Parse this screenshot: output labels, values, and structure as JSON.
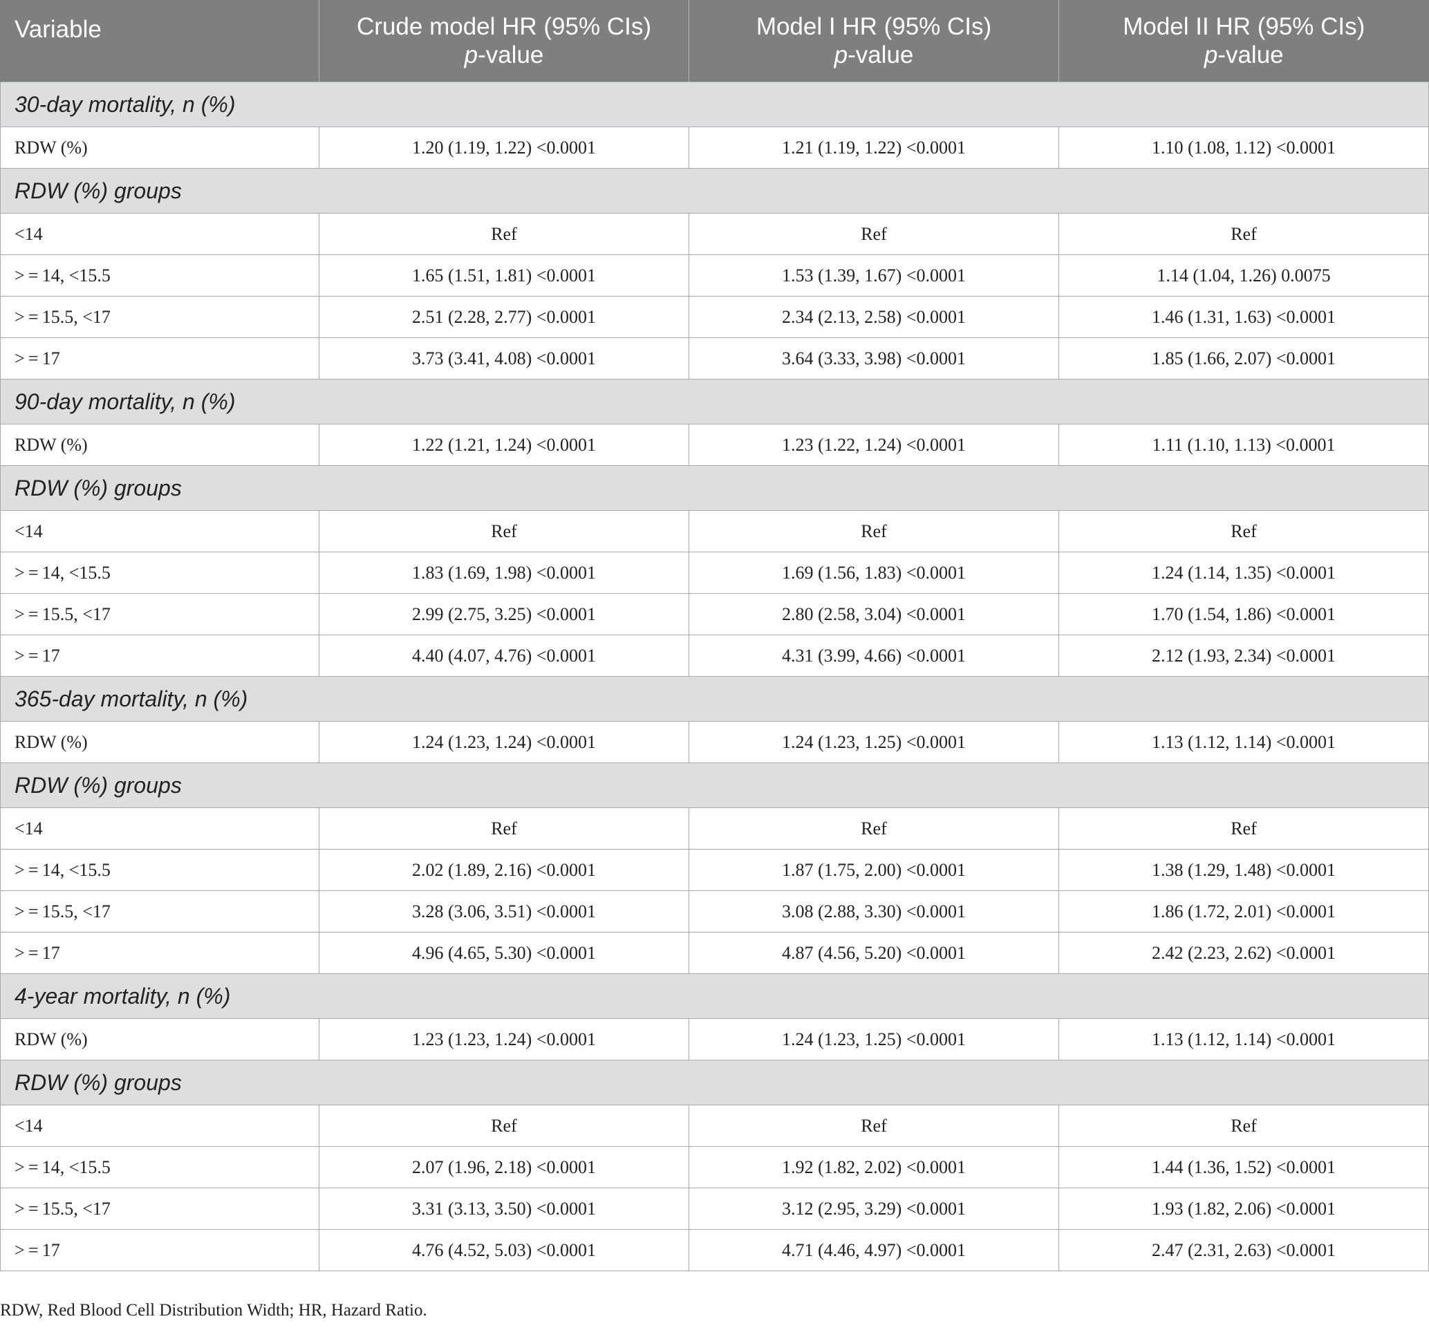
{
  "table": {
    "headers": [
      {
        "line1": "Variable",
        "line2_italic": "",
        "line2_rest": ""
      },
      {
        "line1": "Crude model HR (95% CIs)",
        "line2_italic": "p",
        "line2_rest": "-value"
      },
      {
        "line1": "Model I HR (95% CIs)",
        "line2_italic": "p",
        "line2_rest": "-value"
      },
      {
        "line1": "Model II HR (95% CIs)",
        "line2_italic": "p",
        "line2_rest": "-value"
      }
    ],
    "sections": [
      {
        "title": "30-day mortality, n (%)",
        "rdw_row": [
          "RDW (%)",
          "1.20 (1.19, 1.22) <0.0001",
          "1.21 (1.19, 1.22) <0.0001",
          "1.10 (1.08, 1.12) <0.0001"
        ],
        "groups_title": "RDW (%) groups",
        "group_rows": [
          [
            "<14",
            "Ref",
            "Ref",
            "Ref"
          ],
          [
            "> = 14, <15.5",
            "1.65 (1.51, 1.81) <0.0001",
            "1.53 (1.39, 1.67) <0.0001",
            "1.14 (1.04, 1.26) 0.0075"
          ],
          [
            "> = 15.5, <17",
            "2.51 (2.28, 2.77) <0.0001",
            "2.34 (2.13, 2.58) <0.0001",
            "1.46 (1.31, 1.63) <0.0001"
          ],
          [
            "> = 17",
            "3.73 (3.41, 4.08) <0.0001",
            "3.64 (3.33, 3.98) <0.0001",
            "1.85 (1.66, 2.07) <0.0001"
          ]
        ]
      },
      {
        "title": "90-day mortality, n (%)",
        "rdw_row": [
          "RDW (%)",
          "1.22 (1.21, 1.24) <0.0001",
          "1.23 (1.22, 1.24) <0.0001",
          "1.11 (1.10, 1.13) <0.0001"
        ],
        "groups_title": "RDW (%) groups",
        "group_rows": [
          [
            "<14",
            "Ref",
            "Ref",
            "Ref"
          ],
          [
            "> = 14, <15.5",
            "1.83 (1.69, 1.98) <0.0001",
            "1.69 (1.56, 1.83) <0.0001",
            "1.24 (1.14, 1.35) <0.0001"
          ],
          [
            "> = 15.5, <17",
            "2.99 (2.75, 3.25) <0.0001",
            "2.80 (2.58, 3.04) <0.0001",
            "1.70 (1.54, 1.86) <0.0001"
          ],
          [
            "> = 17",
            "4.40 (4.07, 4.76) <0.0001",
            "4.31 (3.99, 4.66) <0.0001",
            "2.12 (1.93, 2.34) <0.0001"
          ]
        ]
      },
      {
        "title": "365-day mortality, n (%)",
        "rdw_row": [
          "RDW (%)",
          "1.24 (1.23, 1.24) <0.0001",
          "1.24 (1.23, 1.25) <0.0001",
          "1.13 (1.12, 1.14) <0.0001"
        ],
        "groups_title": "RDW (%) groups",
        "group_rows": [
          [
            "<14",
            "Ref",
            "Ref",
            "Ref"
          ],
          [
            "> = 14, <15.5",
            "2.02 (1.89, 2.16) <0.0001",
            "1.87 (1.75, 2.00) <0.0001",
            "1.38 (1.29, 1.48) <0.0001"
          ],
          [
            "> = 15.5, <17",
            "3.28 (3.06, 3.51) <0.0001",
            "3.08 (2.88, 3.30) <0.0001",
            "1.86 (1.72, 2.01) <0.0001"
          ],
          [
            "> = 17",
            "4.96 (4.65, 5.30) <0.0001",
            "4.87 (4.56, 5.20) <0.0001",
            "2.42 (2.23, 2.62) <0.0001"
          ]
        ]
      },
      {
        "title": "4-year mortality, n (%)",
        "rdw_row": [
          "RDW (%)",
          "1.23 (1.23, 1.24) <0.0001",
          "1.24 (1.23, 1.25) <0.0001",
          "1.13 (1.12, 1.14) <0.0001"
        ],
        "groups_title": "RDW (%) groups",
        "group_rows": [
          [
            "<14",
            "Ref",
            "Ref",
            "Ref"
          ],
          [
            "> = 14, <15.5",
            "2.07 (1.96, 2.18) <0.0001",
            "1.92 (1.82, 2.02) <0.0001",
            "1.44 (1.36, 1.52) <0.0001"
          ],
          [
            "> = 15.5, <17",
            "3.31 (3.13, 3.50) <0.0001",
            "3.12 (2.95, 3.29) <0.0001",
            "1.93 (1.82, 2.06) <0.0001"
          ],
          [
            "> = 17",
            "4.76 (4.52, 5.03) <0.0001",
            "4.71 (4.46, 4.97) <0.0001",
            "2.47 (2.31, 2.63) <0.0001"
          ]
        ]
      }
    ]
  },
  "footnote": "RDW, Red Blood Cell Distribution Width; HR, Hazard Ratio."
}
